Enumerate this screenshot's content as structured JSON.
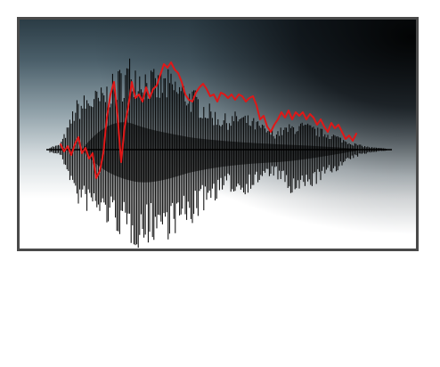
{
  "image": {
    "subject": "waveform-with-pitch-contour",
    "colors": {
      "frame_border": "#4a4a4a",
      "waveform": "#000000",
      "contour": "#e01818",
      "gradient_top": "#2b3c45",
      "gradient_bottom": "#ffffff"
    }
  }
}
